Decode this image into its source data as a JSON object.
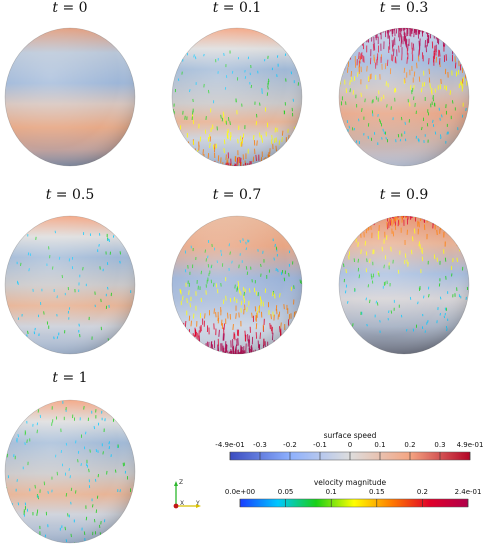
{
  "panels": [
    {
      "label": "t = 0",
      "t_symbol": "t",
      "t_value": "0",
      "band_shift": 0.0,
      "arrow_intensity": 0.0,
      "arrow_region": "none"
    },
    {
      "label": "t = 0.1",
      "t_symbol": "t",
      "t_value": "0.1",
      "band_shift": 0.15,
      "arrow_intensity": 0.55,
      "arrow_region": "bottom"
    },
    {
      "label": "t = 0.3",
      "t_symbol": "t",
      "t_value": "0.3",
      "band_shift": 0.25,
      "arrow_intensity": 1.0,
      "arrow_region": "top"
    },
    {
      "label": "t = 0.5",
      "t_symbol": "t",
      "t_value": "0.5",
      "band_shift": 0.0,
      "arrow_intensity": 0.2,
      "arrow_region": "middle"
    },
    {
      "label": "t = 0.7",
      "t_symbol": "t",
      "t_value": "0.7",
      "band_shift": -0.2,
      "arrow_intensity": 0.9,
      "arrow_region": "bottom"
    },
    {
      "label": "t = 0.9",
      "t_symbol": "t",
      "t_value": "0.9",
      "band_shift": -0.1,
      "arrow_intensity": 0.55,
      "arrow_region": "top"
    },
    {
      "label": "t = 1",
      "t_symbol": "t",
      "t_value": "1",
      "band_shift": 0.05,
      "arrow_intensity": 0.35,
      "arrow_region": "all"
    }
  ],
  "colorbars": {
    "surface_speed": {
      "title": "surface speed",
      "ticks": [
        "-4.9e-01",
        "-0.3",
        "-0.2",
        "-0.1",
        "0",
        "0.1",
        "0.2",
        "0.3",
        "4.9e-01"
      ],
      "colormap": "cool-warm",
      "stops": [
        "#3b4cc0",
        "#8db0fe",
        "#dddddd",
        "#f4a582",
        "#b40426"
      ]
    },
    "velocity_magnitude": {
      "title": "velocity magnitude",
      "ticks": [
        "0.0e+00",
        "0.05",
        "0.1",
        "0.15",
        "0.2",
        "2.4e-01"
      ],
      "colormap": "rainbow",
      "stops": [
        "#1a3cff",
        "#00c8ff",
        "#18d018",
        "#ffff00",
        "#ff7a00",
        "#e0002a",
        "#b0004a"
      ]
    }
  },
  "axes_triad": {
    "labels": [
      "Z",
      "X",
      "Y"
    ],
    "icon": "orientation-axes-icon"
  }
}
